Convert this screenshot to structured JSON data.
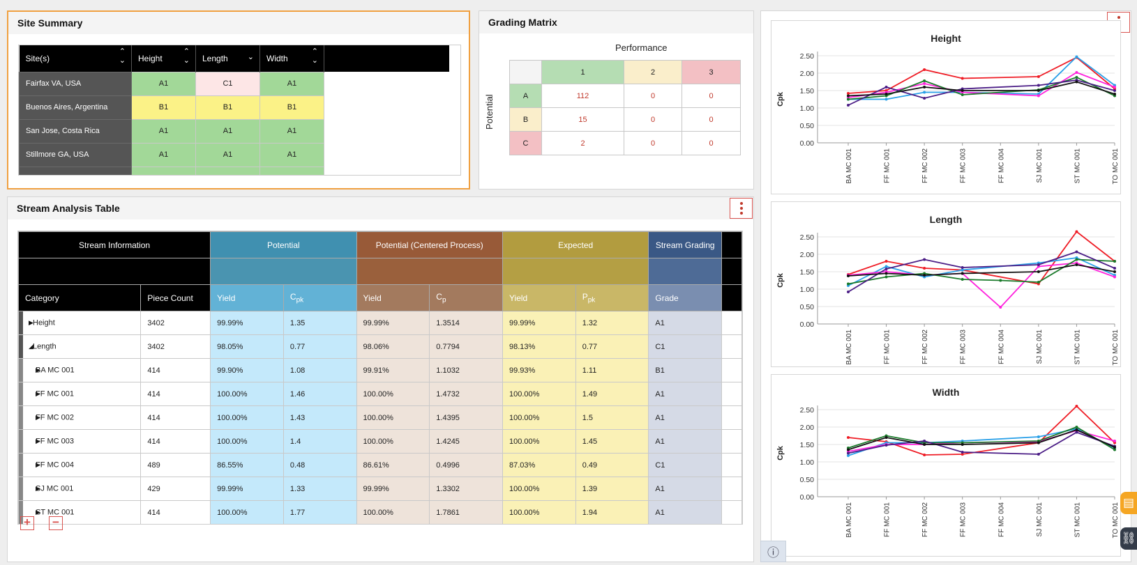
{
  "site_summary": {
    "title": "Site Summary",
    "columns": [
      "Site(s)",
      "Height",
      "Length",
      "Width"
    ],
    "rows": [
      {
        "site": "Fairfax VA, USA",
        "height": "A1",
        "length": "C1",
        "width": "A1"
      },
      {
        "site": "Buenos Aires, Argentina",
        "height": "B1",
        "length": "B1",
        "width": "B1"
      },
      {
        "site": "San Jose, Costa Rica",
        "height": "A1",
        "length": "A1",
        "width": "A1"
      },
      {
        "site": "Stillmore GA, USA",
        "height": "A1",
        "length": "A1",
        "width": "A1"
      }
    ]
  },
  "grading_matrix": {
    "title": "Grading Matrix",
    "x_label": "Performance",
    "y_label": "Potential",
    "cols": [
      "1",
      "2",
      "3"
    ],
    "rows": [
      {
        "label": "A",
        "values": [
          "112",
          "0",
          "0"
        ]
      },
      {
        "label": "B",
        "values": [
          "15",
          "0",
          "0"
        ]
      },
      {
        "label": "C",
        "values": [
          "2",
          "0",
          "0"
        ]
      }
    ]
  },
  "stream_analysis": {
    "title": "Stream Analysis Table",
    "group_headers": {
      "info": "Stream Information",
      "potential": "Potential",
      "potential_centered": "Potential (Centered Process)",
      "expected": "Expected",
      "grading": "Stream Grading"
    },
    "columns": {
      "category": "Category",
      "piece_count": "Piece Count",
      "yield": "Yield",
      "cpk_base": "C",
      "cpk_sub": "pk",
      "cp_base": "C",
      "cp_sub": "p",
      "ppk_base": "P",
      "ppk_sub": "pk",
      "grade": "Grade"
    },
    "rows": [
      {
        "category": "Height",
        "level": 0,
        "expanded": false,
        "count": "3402",
        "pot_yield": "99.99%",
        "cpk": "1.35",
        "pc_yield": "99.99%",
        "cp": "1.3514",
        "exp_yield": "99.99%",
        "ppk": "1.32",
        "grade": "A1"
      },
      {
        "category": "Length",
        "level": 0,
        "expanded": true,
        "count": "3402",
        "pot_yield": "98.05%",
        "cpk": "0.77",
        "pc_yield": "98.06%",
        "cp": "0.7794",
        "exp_yield": "98.13%",
        "ppk": "0.77",
        "grade": "C1"
      },
      {
        "category": "BA MC 001",
        "level": 1,
        "expanded": false,
        "count": "414",
        "pot_yield": "99.90%",
        "cpk": "1.08",
        "pc_yield": "99.91%",
        "cp": "1.1032",
        "exp_yield": "99.93%",
        "ppk": "1.11",
        "grade": "B1"
      },
      {
        "category": "FF MC 001",
        "level": 1,
        "expanded": false,
        "count": "414",
        "pot_yield": "100.00%",
        "cpk": "1.46",
        "pc_yield": "100.00%",
        "cp": "1.4732",
        "exp_yield": "100.00%",
        "ppk": "1.49",
        "grade": "A1"
      },
      {
        "category": "FF MC 002",
        "level": 1,
        "expanded": false,
        "count": "414",
        "pot_yield": "100.00%",
        "cpk": "1.43",
        "pc_yield": "100.00%",
        "cp": "1.4395",
        "exp_yield": "100.00%",
        "ppk": "1.5",
        "grade": "A1"
      },
      {
        "category": "FF MC 003",
        "level": 1,
        "expanded": false,
        "count": "414",
        "pot_yield": "100.00%",
        "cpk": "1.4",
        "pc_yield": "100.00%",
        "cp": "1.4245",
        "exp_yield": "100.00%",
        "ppk": "1.45",
        "grade": "A1"
      },
      {
        "category": "FF MC 004",
        "level": 1,
        "expanded": false,
        "count": "489",
        "pot_yield": "86.55%",
        "cpk": "0.48",
        "pc_yield": "86.61%",
        "cp": "0.4996",
        "exp_yield": "87.03%",
        "ppk": "0.49",
        "grade": "C1"
      },
      {
        "category": "SJ MC 001",
        "level": 1,
        "expanded": false,
        "count": "429",
        "pot_yield": "99.99%",
        "cpk": "1.33",
        "pc_yield": "99.99%",
        "cp": "1.3302",
        "exp_yield": "100.00%",
        "ppk": "1.39",
        "grade": "A1"
      },
      {
        "category": "ST MC 001",
        "level": 1,
        "expanded": false,
        "count": "414",
        "pot_yield": "100.00%",
        "cpk": "1.77",
        "pc_yield": "100.00%",
        "cp": "1.7861",
        "exp_yield": "100.00%",
        "ppk": "1.94",
        "grade": "A1"
      }
    ]
  },
  "colors": {
    "accent": "#f0a040",
    "menu": "#d9534f",
    "series": [
      "#ef1c25",
      "#2aa0e8",
      "#ff22dd",
      "#1a7a2a",
      "#4b1d86",
      "#111111"
    ]
  },
  "icons": {
    "menu": "vertical-dots-icon",
    "expand_all": "plus-box-icon",
    "collapse_all": "minus-box-icon",
    "info": "info-icon",
    "chat": "chat-icon",
    "link": "link-icon"
  },
  "chart_data": [
    {
      "type": "line",
      "title": "Height",
      "ylabel": "Cpk",
      "xlabel": "",
      "ylim": [
        0,
        2.5
      ],
      "yticks": [
        "0.00",
        "0.50",
        "1.00",
        "1.50",
        "2.00",
        "2.50"
      ],
      "categories": [
        "BA MC 001",
        "FF MC 001",
        "FF MC 002",
        "FF MC 003",
        "FF MC 004",
        "SJ MC 001",
        "ST MC 001",
        "TO MC 001"
      ],
      "grid": true,
      "series": [
        {
          "values": [
            1.42,
            1.5,
            2.1,
            1.85,
            null,
            1.9,
            2.45,
            1.55
          ]
        },
        {
          "values": [
            1.25,
            1.25,
            1.45,
            1.45,
            null,
            1.4,
            2.47,
            1.65
          ]
        },
        {
          "values": [
            1.3,
            1.45,
            1.7,
            1.45,
            null,
            1.35,
            2.02,
            1.6
          ]
        },
        {
          "values": [
            1.25,
            1.35,
            1.78,
            1.38,
            null,
            1.52,
            1.88,
            1.35
          ]
        },
        {
          "values": [
            1.08,
            1.6,
            1.28,
            1.55,
            null,
            1.65,
            1.8,
            1.5
          ]
        },
        {
          "values": [
            1.35,
            1.4,
            1.6,
            1.5,
            null,
            1.5,
            1.75,
            1.4
          ]
        }
      ]
    },
    {
      "type": "line",
      "title": "Length",
      "ylabel": "Cpk",
      "xlabel": "",
      "ylim": [
        0,
        2.5
      ],
      "yticks": [
        "0.00",
        "0.50",
        "1.00",
        "1.50",
        "2.00",
        "2.50"
      ],
      "categories": [
        "BA MC 001",
        "FF MC 001",
        "FF MC 002",
        "FF MC 003",
        "FF MC 004",
        "SJ MC 001",
        "ST MC 001",
        "TO MC 001"
      ],
      "grid": true,
      "series": [
        {
          "values": [
            1.42,
            1.8,
            1.6,
            1.55,
            null,
            1.15,
            2.65,
            1.8
          ]
        },
        {
          "values": [
            1.1,
            1.65,
            1.35,
            1.55,
            null,
            1.75,
            1.9,
            1.4
          ]
        },
        {
          "values": [
            1.4,
            1.5,
            1.4,
            1.45,
            0.48,
            1.65,
            1.75,
            1.35
          ]
        },
        {
          "values": [
            1.15,
            1.35,
            1.45,
            1.28,
            1.25,
            1.2,
            1.85,
            1.8
          ]
        },
        {
          "values": [
            0.92,
            1.58,
            1.85,
            1.62,
            null,
            1.7,
            2.07,
            1.6
          ]
        },
        {
          "values": [
            1.38,
            1.45,
            1.4,
            1.45,
            null,
            1.5,
            1.7,
            1.5
          ]
        }
      ]
    },
    {
      "type": "line",
      "title": "Width",
      "ylabel": "Cpk",
      "xlabel": "",
      "ylim": [
        0,
        2.5
      ],
      "yticks": [
        "0.00",
        "0.50",
        "1.00",
        "1.50",
        "2.00",
        "2.50"
      ],
      "categories": [
        "BA MC 001",
        "FF MC 001",
        "FF MC 002",
        "FF MC 003",
        "FF MC 004",
        "SJ MC 001",
        "ST MC 001",
        "TO MC 001"
      ],
      "grid": true,
      "series": [
        {
          "values": [
            1.7,
            1.58,
            1.2,
            1.22,
            null,
            1.55,
            2.6,
            1.55
          ]
        },
        {
          "values": [
            1.18,
            1.55,
            1.55,
            1.6,
            null,
            1.72,
            1.95,
            1.4
          ]
        },
        {
          "values": [
            1.3,
            1.5,
            1.5,
            1.55,
            null,
            1.58,
            1.9,
            1.6
          ]
        },
        {
          "values": [
            1.4,
            1.75,
            1.55,
            1.55,
            null,
            1.6,
            2.0,
            1.35
          ]
        },
        {
          "values": [
            1.25,
            1.48,
            1.6,
            1.28,
            null,
            1.22,
            1.85,
            1.45
          ]
        },
        {
          "values": [
            1.35,
            1.7,
            1.5,
            1.5,
            null,
            1.55,
            1.92,
            1.42
          ]
        }
      ]
    }
  ]
}
